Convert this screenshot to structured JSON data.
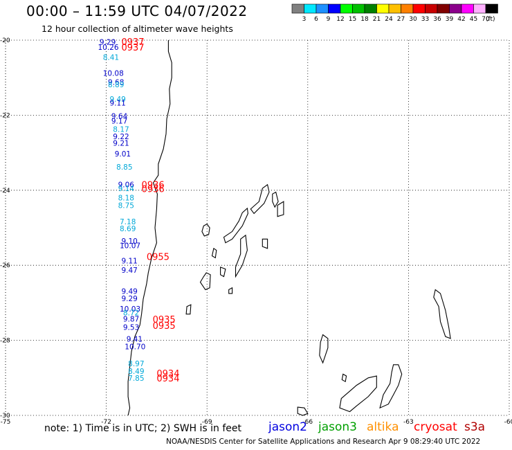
{
  "header": {
    "title": "00:00 – 11:59 UTC 04/07/2022",
    "subtitle": "12 hour collection of altimeter wave heights"
  },
  "legend": {
    "unit": "(ft)",
    "bins": [
      {
        "label": "3",
        "color": "#808080"
      },
      {
        "label": "6",
        "color": "#00e8ff"
      },
      {
        "label": "9",
        "color": "#1e90ff"
      },
      {
        "label": "12",
        "color": "#0000ff"
      },
      {
        "label": "15",
        "color": "#00ff00"
      },
      {
        "label": "18",
        "color": "#00c000"
      },
      {
        "label": "21",
        "color": "#008000"
      },
      {
        "label": "24",
        "color": "#ffff00"
      },
      {
        "label": "27",
        "color": "#ffc000"
      },
      {
        "label": "30",
        "color": "#ff8000"
      },
      {
        "label": "33",
        "color": "#ff0000"
      },
      {
        "label": "36",
        "color": "#c80000"
      },
      {
        "label": "39",
        "color": "#800000"
      },
      {
        "label": "42",
        "color": "#8b008b"
      },
      {
        "label": "45",
        "color": "#ff00ff"
      },
      {
        "label": "70",
        "color": "#ffb0ff"
      },
      {
        "label": "",
        "color": "#000000"
      }
    ]
  },
  "map": {
    "lon_range": [
      -75,
      -60
    ],
    "lat_range": [
      -30,
      -20
    ],
    "lat_ticks": [
      "-20",
      "-22",
      "-24",
      "-26",
      "-28",
      "-30"
    ],
    "lon_ticks": [
      "-75",
      "-72",
      "-69",
      "-66",
      "-63",
      "-60"
    ],
    "colors": {
      "jason2": "#0000c8",
      "jason3": "#00a8d8",
      "time": "#ff0000"
    },
    "obs": [
      {
        "lon": -72.2,
        "lat": -20.05,
        "v": "9.29",
        "c": "jason2"
      },
      {
        "lon": -72.25,
        "lat": -20.18,
        "v": "10.26",
        "c": "jason2"
      },
      {
        "lon": -72.1,
        "lat": -20.45,
        "v": "8.41",
        "c": "jason3"
      },
      {
        "lon": -72.1,
        "lat": -20.88,
        "v": "10.08",
        "c": "jason2"
      },
      {
        "lon": -71.95,
        "lat": -21.12,
        "v": "9.68",
        "c": "jason2"
      },
      {
        "lon": -71.95,
        "lat": -21.18,
        "v": "8.89",
        "c": "jason3"
      },
      {
        "lon": -71.9,
        "lat": -21.57,
        "v": "9.49",
        "c": "jason3"
      },
      {
        "lon": -71.9,
        "lat": -21.67,
        "v": "9.11",
        "c": "jason2"
      },
      {
        "lon": -71.85,
        "lat": -22.02,
        "v": "9.64",
        "c": "jason2"
      },
      {
        "lon": -71.85,
        "lat": -22.15,
        "v": "9.17",
        "c": "jason2"
      },
      {
        "lon": -71.8,
        "lat": -22.37,
        "v": "8.17",
        "c": "jason3"
      },
      {
        "lon": -71.8,
        "lat": -22.56,
        "v": "9.22",
        "c": "jason2"
      },
      {
        "lon": -71.8,
        "lat": -22.74,
        "v": "9.21",
        "c": "jason2"
      },
      {
        "lon": -71.75,
        "lat": -23.03,
        "v": "9.01",
        "c": "jason2"
      },
      {
        "lon": -71.7,
        "lat": -23.38,
        "v": "8.85",
        "c": "jason3"
      },
      {
        "lon": -71.65,
        "lat": -23.85,
        "v": "9.06",
        "c": "jason2"
      },
      {
        "lon": -71.65,
        "lat": -23.95,
        "v": "9.14",
        "c": "jason3"
      },
      {
        "lon": -71.65,
        "lat": -24.2,
        "v": "8.18",
        "c": "jason3"
      },
      {
        "lon": -71.65,
        "lat": -24.4,
        "v": "8.75",
        "c": "jason3"
      },
      {
        "lon": -71.6,
        "lat": -24.83,
        "v": "7.18",
        "c": "jason3"
      },
      {
        "lon": -71.6,
        "lat": -25.02,
        "v": "8.69",
        "c": "jason3"
      },
      {
        "lon": -71.55,
        "lat": -25.35,
        "v": "9.10",
        "c": "jason2"
      },
      {
        "lon": -71.6,
        "lat": -25.47,
        "v": "10.07",
        "c": "jason2"
      },
      {
        "lon": -71.55,
        "lat": -25.88,
        "v": "9.11",
        "c": "jason2"
      },
      {
        "lon": -71.55,
        "lat": -26.13,
        "v": "9.47",
        "c": "jason2"
      },
      {
        "lon": -71.55,
        "lat": -26.69,
        "v": "9.49",
        "c": "jason2"
      },
      {
        "lon": -71.55,
        "lat": -26.88,
        "v": "9.29",
        "c": "jason2"
      },
      {
        "lon": -71.6,
        "lat": -27.16,
        "v": "10.03",
        "c": "jason2"
      },
      {
        "lon": -71.5,
        "lat": -27.26,
        "v": "8.72",
        "c": "jason3"
      },
      {
        "lon": -71.5,
        "lat": -27.43,
        "v": "9.87",
        "c": "jason2"
      },
      {
        "lon": -71.5,
        "lat": -27.65,
        "v": "9.53",
        "c": "jason2"
      },
      {
        "lon": -71.4,
        "lat": -27.96,
        "v": "9.41",
        "c": "jason2"
      },
      {
        "lon": -71.45,
        "lat": -28.16,
        "v": "10.70",
        "c": "jason2"
      },
      {
        "lon": -71.35,
        "lat": -28.62,
        "v": "8.97",
        "c": "jason3"
      },
      {
        "lon": -71.35,
        "lat": -28.82,
        "v": "8.49",
        "c": "jason3"
      },
      {
        "lon": -71.35,
        "lat": -29.0,
        "v": "7.85",
        "c": "jason3"
      }
    ],
    "times": [
      {
        "lon": -71.55,
        "lat": -20.04,
        "t": "0937"
      },
      {
        "lon": -71.55,
        "lat": -20.18,
        "t": "0937"
      },
      {
        "lon": -70.95,
        "lat": -23.85,
        "t": "0936"
      },
      {
        "lon": -70.95,
        "lat": -23.96,
        "t": "0936"
      },
      {
        "lon": -70.8,
        "lat": -25.77,
        "t": "0955"
      },
      {
        "lon": -70.62,
        "lat": -27.44,
        "t": "0935"
      },
      {
        "lon": -70.62,
        "lat": -27.6,
        "t": "0935"
      },
      {
        "lon": -70.5,
        "lat": -28.87,
        "t": "0934"
      },
      {
        "lon": -70.5,
        "lat": -29.0,
        "t": "0934"
      }
    ]
  },
  "footer": {
    "note": "note: 1) Time is in UTC; 2) SWH is in feet",
    "satellites": [
      {
        "name": "jason2",
        "color": "#0000e0"
      },
      {
        "name": "jason3",
        "color": "#00a000"
      },
      {
        "name": "altika",
        "color": "#ff9000"
      },
      {
        "name": "cryosat",
        "color": "#ff0000"
      },
      {
        "name": "s3a",
        "color": "#b00000"
      }
    ],
    "credit": "NOAA/NESDIS Center for Satellite Applications and Research    Apr  9 08:29:40 UTC 2022"
  }
}
